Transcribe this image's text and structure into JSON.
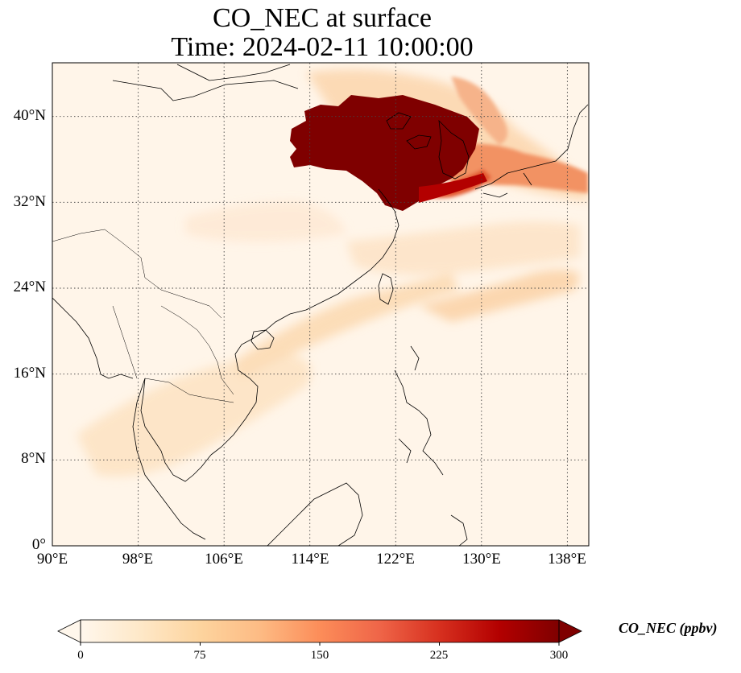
{
  "title": {
    "line1": "CO_NEC at surface",
    "line2": "Time: 2024-02-11 10:00:00"
  },
  "map": {
    "lon_range": [
      90,
      140
    ],
    "lat_range": [
      0,
      45
    ],
    "lon_ticks": [
      "90°E",
      "98°E",
      "106°E",
      "114°E",
      "122°E",
      "130°E",
      "138°E"
    ],
    "lat_ticks": [
      "0°",
      "8°N",
      "16°N",
      "24°N",
      "32°N",
      "40°N"
    ],
    "gridlines": "dotted",
    "coastlines": true,
    "borders": true
  },
  "colorbar": {
    "label": "CO_NEC (ppbv)",
    "ticks": [
      "0",
      "75",
      "150",
      "225",
      "300"
    ],
    "range": [
      0,
      300
    ],
    "colormap": "OrRd",
    "extend": "both",
    "colors": [
      "#fff7ec",
      "#fee8c8",
      "#fdd49e",
      "#fdbb84",
      "#fc8d59",
      "#ef6548",
      "#d7301f",
      "#b30000",
      "#7f0000"
    ]
  }
}
